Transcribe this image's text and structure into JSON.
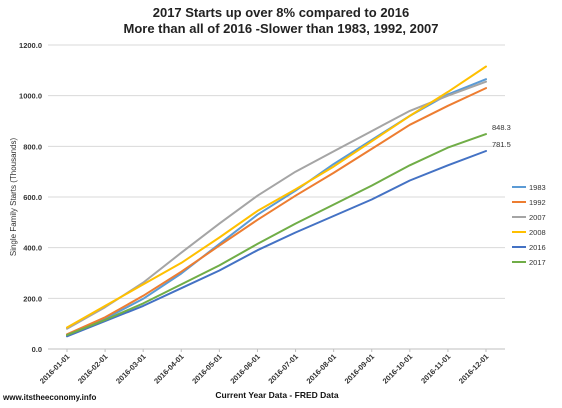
{
  "title_line1": "2017 Starts up over 8% compared to 2016",
  "title_line2": "More than all of 2016 -Slower than 1983, 1992, 2007",
  "footer": "www.itstheeconomy.info",
  "chart_data": {
    "type": "line",
    "title": "2017 Starts up over 8% compared to 2016",
    "subtitle": "More than all of 2016 -Slower than 1983, 1992, 2007",
    "xlabel": "Current Year Data - FRED Data",
    "ylabel": "Single Family Starts (Thousands)",
    "ylim": [
      0,
      1200
    ],
    "yticks": [
      "0.0",
      "200.0",
      "400.0",
      "600.0",
      "800.0",
      "1000.0",
      "1200.0"
    ],
    "categories": [
      "2016-01-01",
      "2016-02-01",
      "2016-03-01",
      "2016-04-01",
      "2016-05-01",
      "2016-06-01",
      "2016-07-01",
      "2016-08-01",
      "2016-09-01",
      "2016-10-01",
      "2016-11-01",
      "2016-12-01"
    ],
    "legend_position": "right",
    "grid": "horizontal",
    "series": [
      {
        "name": "1983",
        "color": "#5B9BD5",
        "values": [
          52,
          120,
          198,
          298,
          415,
          530,
          625,
          730,
          825,
          920,
          1005,
          1065
        ]
      },
      {
        "name": "1992",
        "color": "#ED7D31",
        "values": [
          58,
          125,
          210,
          305,
          408,
          510,
          605,
          695,
          790,
          885,
          960,
          1030
        ]
      },
      {
        "name": "2007",
        "color": "#A5A5A5",
        "values": [
          80,
          165,
          262,
          380,
          495,
          605,
          700,
          780,
          860,
          940,
          1000,
          1055
        ]
      },
      {
        "name": "2008",
        "color": "#FFC000",
        "values": [
          85,
          170,
          255,
          340,
          440,
          545,
          630,
          720,
          820,
          920,
          1015,
          1115
        ]
      },
      {
        "name": "2016",
        "color": "#4472C4",
        "values": [
          50,
          110,
          170,
          240,
          310,
          390,
          460,
          525,
          590,
          665,
          725,
          781.5
        ]
      },
      {
        "name": "2017",
        "color": "#70AD47",
        "values": [
          55,
          115,
          180,
          255,
          330,
          415,
          495,
          570,
          645,
          725,
          795,
          848.3
        ]
      }
    ],
    "end_labels": [
      {
        "series": "2017",
        "text": "848.3"
      },
      {
        "series": "2016",
        "text": "781.5"
      }
    ]
  }
}
